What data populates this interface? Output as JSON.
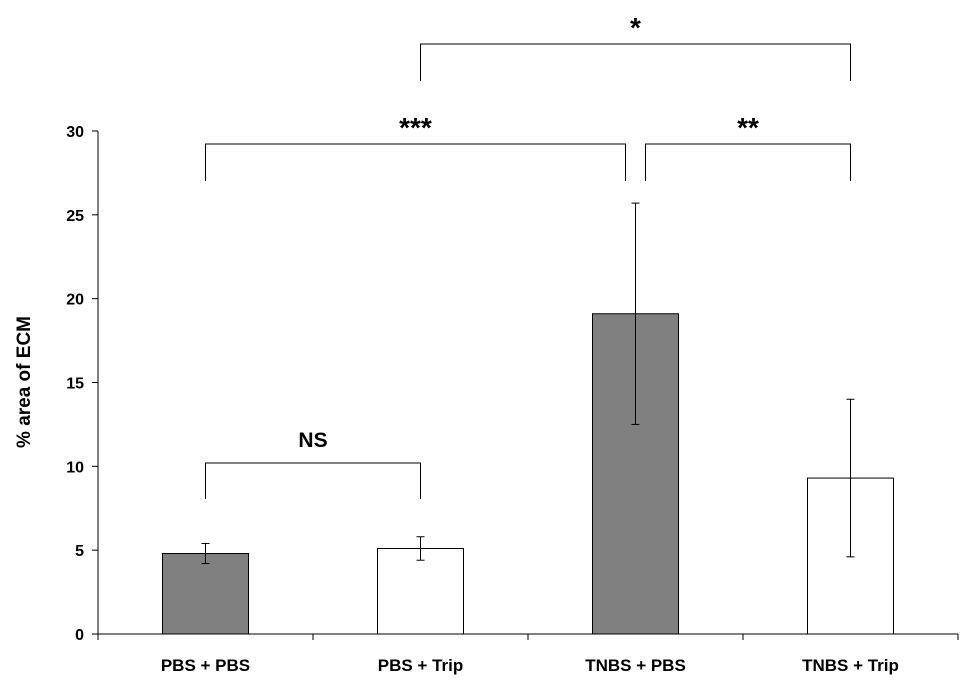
{
  "chart_data": {
    "type": "bar",
    "title": "",
    "xlabel": "",
    "ylabel": "% area of ECM",
    "ylim": [
      0,
      30
    ],
    "yticks": [
      0,
      5,
      10,
      15,
      20,
      25,
      30
    ],
    "grid": false,
    "categories": [
      "PBS + PBS",
      "PBS + Trip",
      "TNBS + PBS",
      "TNBS + Trip"
    ],
    "values": [
      4.8,
      5.1,
      19.1,
      9.3
    ],
    "error": [
      0.6,
      0.7,
      6.6,
      4.7
    ],
    "bar_fill": [
      "#808080",
      "#ffffff",
      "#808080",
      "#ffffff"
    ],
    "significance": [
      {
        "from": 0,
        "to": 1,
        "label": "NS"
      },
      {
        "from": 0,
        "to": 2,
        "label": "***"
      },
      {
        "from": 2,
        "to": 3,
        "label": "**"
      },
      {
        "from": 1,
        "to": 3,
        "label": "*"
      }
    ]
  }
}
